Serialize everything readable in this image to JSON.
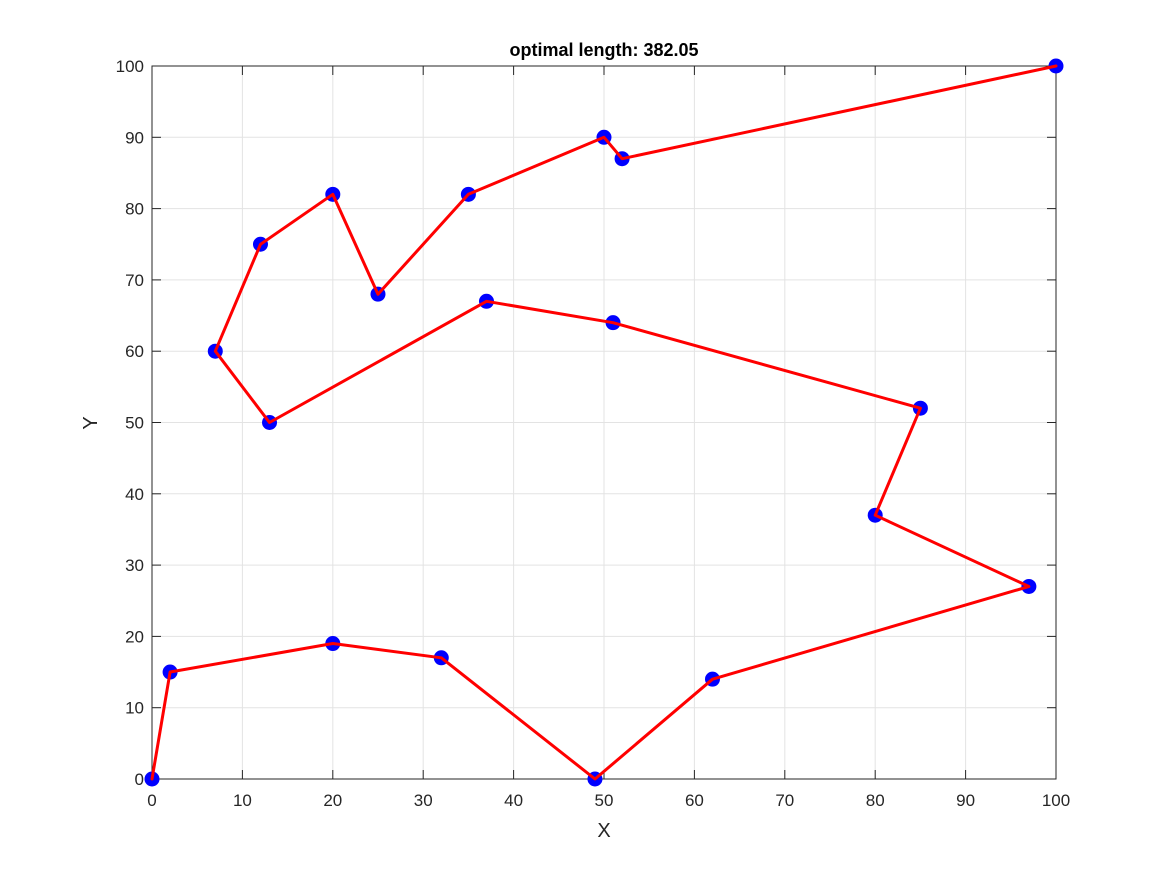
{
  "chart_data": {
    "type": "line",
    "title": "optimal length: 382.05",
    "xlabel": "X",
    "ylabel": "Y",
    "xlim": [
      0,
      100
    ],
    "ylim": [
      0,
      100
    ],
    "xticks": [
      0,
      10,
      20,
      30,
      40,
      50,
      60,
      70,
      80,
      90,
      100
    ],
    "yticks": [
      0,
      10,
      20,
      30,
      40,
      50,
      60,
      70,
      80,
      90,
      100
    ],
    "grid": true,
    "box": true,
    "series": [
      {
        "color": "#ff0000",
        "marker_color": "#0000ff",
        "x": [
          0,
          2,
          20,
          32,
          49,
          62,
          97,
          80,
          85,
          51,
          37,
          13,
          7,
          12,
          20,
          25,
          35,
          50,
          52,
          100
        ],
        "y": [
          0,
          15,
          19,
          17,
          0,
          14,
          27,
          37,
          52,
          64,
          67,
          50,
          60,
          75,
          82,
          68,
          82,
          90,
          87,
          100
        ]
      }
    ]
  }
}
